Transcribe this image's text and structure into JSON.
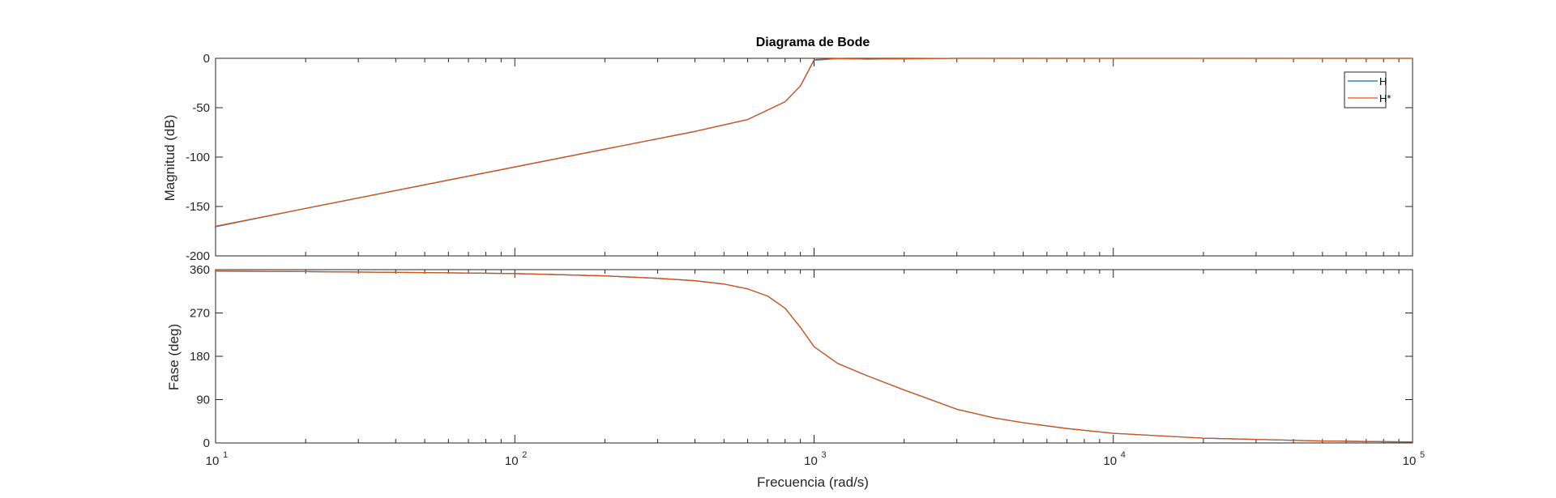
{
  "chart_data": {
    "type": "line",
    "title": "Diagrama de Bode",
    "xlabel": "Frecuencia  (rad/s)",
    "xscale": "log",
    "xlim": [
      10,
      100000
    ],
    "x_ticks": [
      {
        "base": "10",
        "exp": "1"
      },
      {
        "base": "10",
        "exp": "2"
      },
      {
        "base": "10",
        "exp": "3"
      },
      {
        "base": "10",
        "exp": "4"
      },
      {
        "base": "10",
        "exp": "5"
      }
    ],
    "legend": {
      "placement": "top-right",
      "entries": [
        {
          "name": "H",
          "color": "#0072BD"
        },
        {
          "name": "H*",
          "color": "#D95319"
        }
      ]
    },
    "colors": {
      "H": "#0072BD",
      "H*": "#D95319",
      "axes": "#262626"
    },
    "grid": false,
    "subplots": [
      {
        "ylabel": "Magnitud (dB)",
        "ylim": [
          -200,
          0
        ],
        "yticks": [
          0,
          -50,
          -100,
          -150,
          -200
        ],
        "series": [
          {
            "name": "H",
            "x": [
              10,
              20,
              50,
              100,
              200,
              400,
              600,
              800,
              900,
              1000,
              1200,
              1500,
              2000,
              3000,
              5000,
              10000,
              20000,
              50000,
              100000
            ],
            "values": [
              -170.5,
              -152,
              -128,
              -110,
              -92,
              -74,
              -62,
              -44,
              -28,
              -2,
              -0.3,
              -0.8,
              -0.5,
              0,
              0,
              0,
              0,
              0,
              0
            ]
          },
          {
            "name": "H*",
            "x": [
              10,
              20,
              50,
              100,
              200,
              400,
              600,
              800,
              900,
              1000,
              1200,
              1500,
              2000,
              3000,
              5000,
              10000,
              20000,
              50000,
              100000
            ],
            "values": [
              -170,
              -152,
              -128,
              -110,
              -92,
              -74,
              -62,
              -44,
              -28,
              -1.5,
              -0.3,
              -0.8,
              -0.5,
              0,
              0,
              0,
              0,
              0,
              0
            ]
          }
        ]
      },
      {
        "ylabel": "Fase (deg)",
        "ylim": [
          0,
          360
        ],
        "yticks": [
          0,
          90,
          180,
          270,
          360
        ],
        "series": [
          {
            "name": "H",
            "x": [
              10,
              20,
              50,
              100,
              200,
              300,
              400,
              500,
              600,
              700,
              800,
              900,
              1000,
              1200,
              1500,
              2000,
              3000,
              4000,
              5000,
              7000,
              10000,
              20000,
              50000,
              100000
            ],
            "values": [
              357,
              356,
              354,
              352,
              347,
              342,
              337,
              330,
              320,
              305,
              280,
              240,
              200,
              165,
              140,
              110,
              70,
              52,
              42,
              30,
              20,
              10,
              4,
              2
            ]
          },
          {
            "name": "H*",
            "x": [
              10,
              20,
              50,
              100,
              200,
              300,
              400,
              500,
              600,
              700,
              800,
              900,
              1000,
              1200,
              1500,
              2000,
              3000,
              4000,
              5000,
              7000,
              10000,
              20000,
              50000,
              100000
            ],
            "values": [
              357,
              356,
              354,
              352,
              347,
              342,
              337,
              330,
              320,
              305,
              280,
              240,
              200,
              165,
              140,
              110,
              70,
              52,
              42,
              30,
              20,
              10,
              4,
              2
            ]
          }
        ]
      }
    ]
  }
}
